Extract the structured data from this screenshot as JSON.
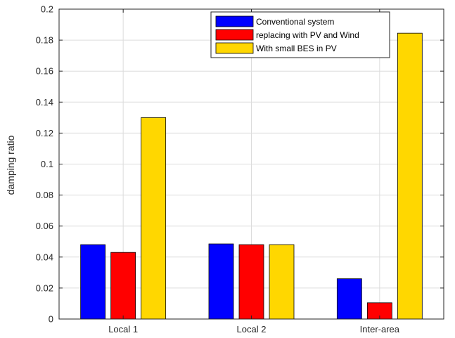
{
  "chart_data": {
    "type": "bar",
    "title": "",
    "xlabel": "",
    "ylabel": "damping ratio",
    "categories": [
      "Local 1",
      "Local 2",
      "Inter-area"
    ],
    "series": [
      {
        "name": "Conventional system",
        "color": "#0000ff",
        "values": [
          0.048,
          0.0485,
          0.026
        ]
      },
      {
        "name": "replacing with PV and Wind",
        "color": "#ff0000",
        "values": [
          0.043,
          0.048,
          0.0105
        ]
      },
      {
        "name": "With small BES in PV",
        "color": "#ffd700",
        "values": [
          0.13,
          0.048,
          0.1845
        ]
      }
    ],
    "ylim": [
      0,
      0.2
    ],
    "yticks": [
      0,
      0.02,
      0.04,
      0.06,
      0.08,
      0.1,
      0.12,
      0.14,
      0.16,
      0.18,
      0.2
    ],
    "ytick_labels": [
      "0",
      "0.02",
      "0.04",
      "0.06",
      "0.08",
      "0.1",
      "0.12",
      "0.14",
      "0.16",
      "0.18",
      "0.2"
    ],
    "grid": true,
    "legend_position": "top-right"
  }
}
